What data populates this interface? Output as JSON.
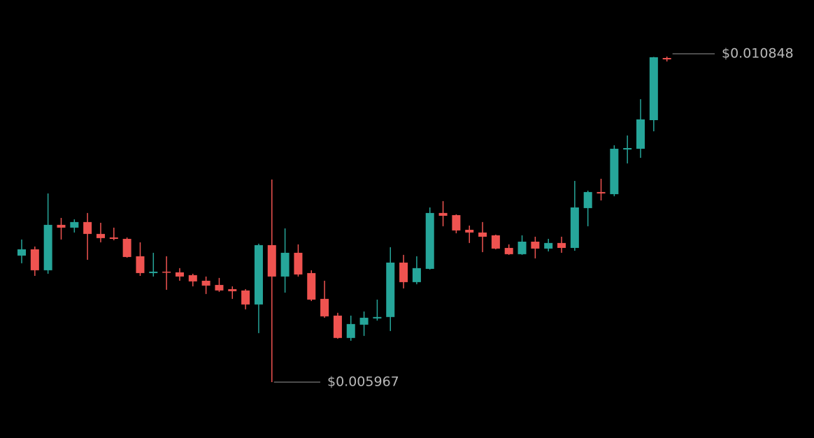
{
  "chart_data": {
    "type": "candlestick",
    "up_color": "#26a69a",
    "down_color": "#ef5350",
    "open": [
      0.007864,
      0.007958,
      0.007644,
      0.008325,
      0.008283,
      0.008367,
      0.008189,
      0.008136,
      0.008115,
      0.007854,
      0.007602,
      0.007623,
      0.007613,
      0.007571,
      0.007487,
      0.007424,
      0.007361,
      0.007341,
      0.007131,
      0.008021,
      0.00755,
      0.007906,
      0.007602,
      0.007215,
      0.006964,
      0.006629,
      0.006828,
      0.006922,
      0.006943,
      0.007759,
      0.007466,
      0.007665,
      0.008503,
      0.008471,
      0.008251,
      0.00821,
      0.008168,
      0.007979,
      0.007885,
      0.008073,
      0.007969,
      0.008053,
      0.007979,
      0.008576,
      0.008817,
      0.008785,
      0.009455,
      0.009466,
      0.009895,
      0.010827
    ],
    "high": [
      0.008105,
      0.008,
      0.008796,
      0.008429,
      0.008408,
      0.008503,
      0.008356,
      0.008283,
      0.008136,
      0.008063,
      0.007906,
      0.007854,
      0.007676,
      0.007592,
      0.00755,
      0.007529,
      0.007403,
      0.007361,
      0.008042,
      0.009005,
      0.008272,
      0.008032,
      0.007644,
      0.007487,
      0.007006,
      0.006964,
      0.007026,
      0.007204,
      0.00799,
      0.007875,
      0.007854,
      0.008586,
      0.008681,
      0.008482,
      0.008314,
      0.008367,
      0.008178,
      0.008032,
      0.008168,
      0.008147,
      0.008115,
      0.008147,
      0.008984,
      0.008838,
      0.009016,
      0.009518,
      0.009665,
      0.010209,
      0.010843,
      0.010848
    ],
    "low": [
      0.007749,
      0.00756,
      0.007592,
      0.008105,
      0.00821,
      0.007801,
      0.008063,
      0.008094,
      0.007833,
      0.00756,
      0.00755,
      0.007351,
      0.007487,
      0.007403,
      0.007288,
      0.00732,
      0.007215,
      0.007058,
      0.006702,
      0.005967,
      0.007309,
      0.00755,
      0.007183,
      0.006932,
      0.006618,
      0.006587,
      0.00666,
      0.00689,
      0.006733,
      0.007372,
      0.007435,
      0.007655,
      0.008304,
      0.008199,
      0.008053,
      0.007916,
      0.007958,
      0.007875,
      0.007875,
      0.007822,
      0.007927,
      0.007906,
      0.007937,
      0.008304,
      0.008691,
      0.008754,
      0.009246,
      0.00933,
      0.009728,
      0.010775
    ],
    "close": [
      0.007958,
      0.007644,
      0.008325,
      0.008283,
      0.008367,
      0.008189,
      0.008126,
      0.008115,
      0.007843,
      0.007602,
      0.007623,
      0.007613,
      0.00755,
      0.007477,
      0.007414,
      0.007341,
      0.00733,
      0.007131,
      0.008021,
      0.00755,
      0.007906,
      0.007581,
      0.007204,
      0.006953,
      0.006629,
      0.006838,
      0.006932,
      0.006943,
      0.007759,
      0.007466,
      0.007676,
      0.008503,
      0.008461,
      0.008241,
      0.00821,
      0.008147,
      0.007969,
      0.007885,
      0.008073,
      0.007969,
      0.008053,
      0.007979,
      0.008586,
      0.008817,
      0.008796,
      0.009466,
      0.009476,
      0.009906,
      0.010838,
      0.010806
    ],
    "annotations": [
      {
        "value": 0.010848,
        "label": "$0.010848"
      },
      {
        "value": 0.005967,
        "label": "$0.005967"
      }
    ]
  }
}
